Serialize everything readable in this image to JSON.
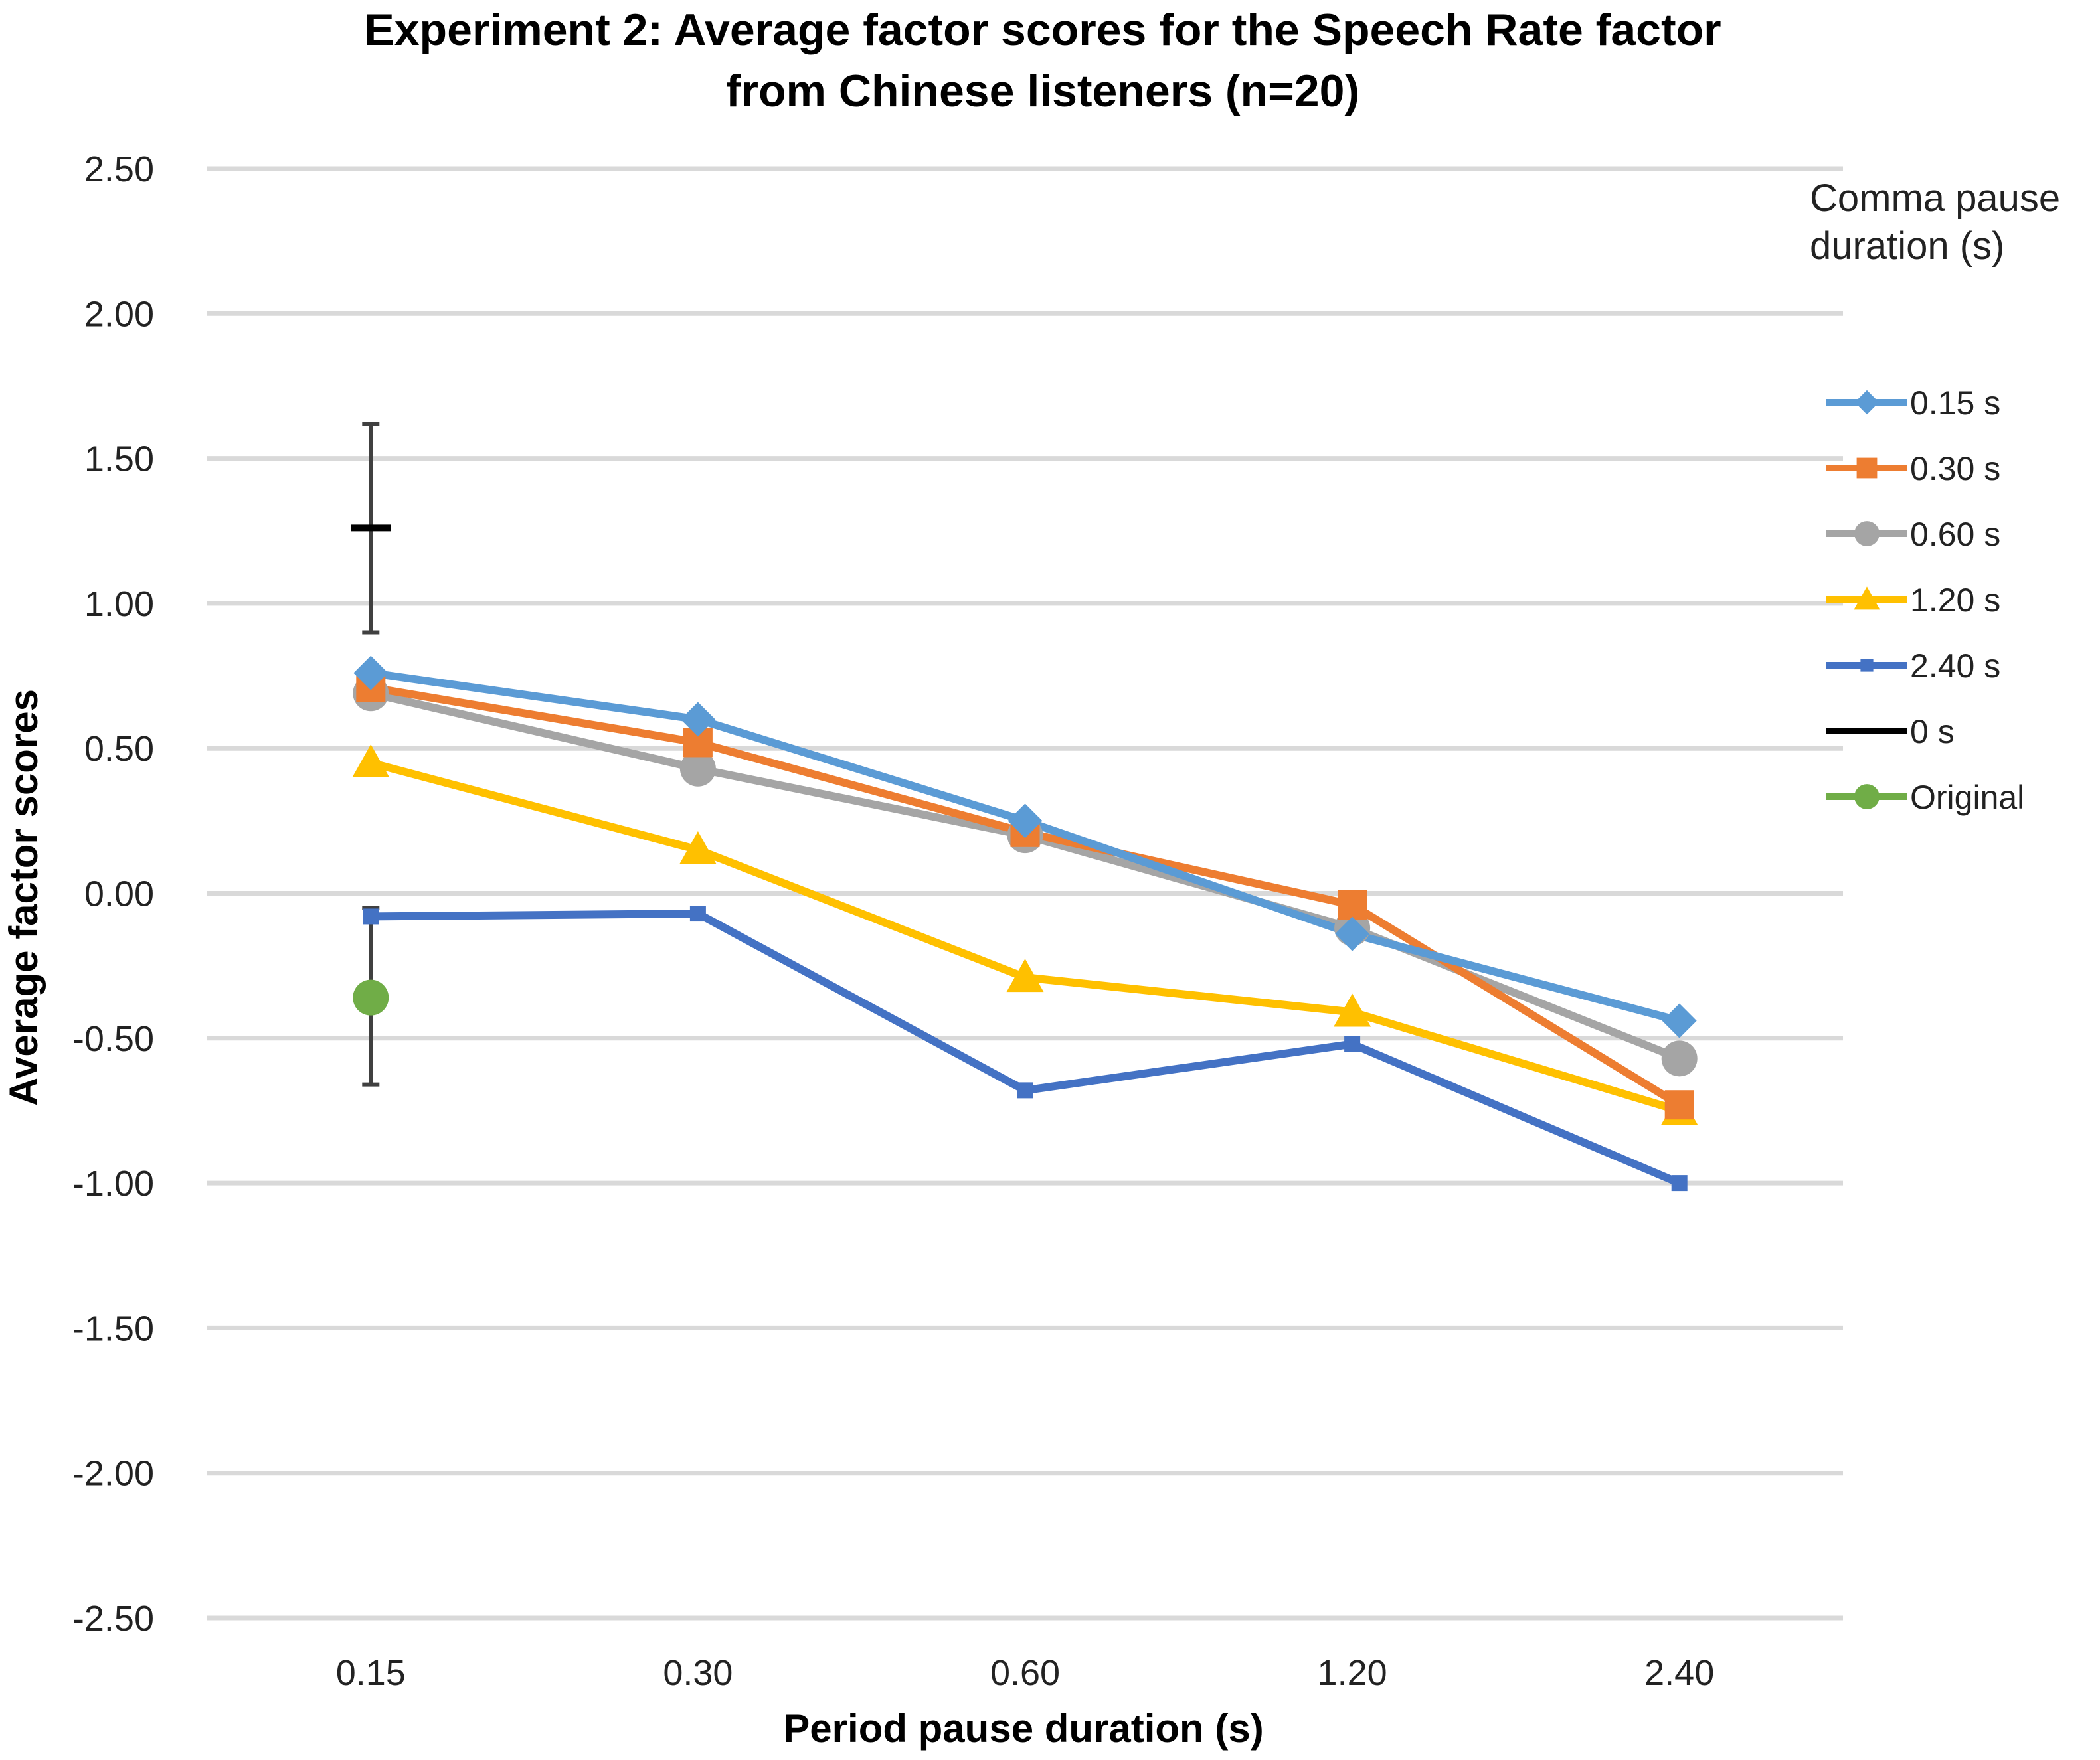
{
  "chart_data": {
    "type": "line",
    "title_lines": [
      "Experiment 2: Average factor scores for the Speech Rate factor",
      "from  Chinese listeners (n=20)"
    ],
    "xlabel": "Period pause duration (s)",
    "ylabel": "Average  factor scores",
    "categories": [
      "0.15",
      "0.30",
      "0.60",
      "1.20",
      "2.40"
    ],
    "ylim": [
      -2.5,
      2.5
    ],
    "yticks": [
      2.5,
      2.0,
      1.5,
      1.0,
      0.5,
      0.0,
      -0.5,
      -1.0,
      -1.5,
      -2.0,
      -2.5
    ],
    "ytick_labels": [
      "2.50",
      "2.00",
      "1.50",
      "1.00",
      "0.50",
      "0.00",
      "-0.50",
      "-1.00",
      "-1.50",
      "-2.00",
      "-2.50"
    ],
    "grid": true,
    "legend_title_lines": [
      "Comma pause",
      "duration (s)"
    ],
    "legend_position": "right",
    "series": [
      {
        "name": "0.15 s",
        "color": "#5B9BD5",
        "marker": "diamond",
        "values": [
          0.76,
          0.6,
          0.25,
          -0.14,
          -0.44
        ]
      },
      {
        "name": "0.30 s",
        "color": "#ED7D31",
        "marker": "square",
        "values": [
          0.71,
          0.52,
          0.21,
          -0.04,
          -0.73
        ]
      },
      {
        "name": "0.60 s",
        "color": "#A5A5A5",
        "marker": "circle",
        "values": [
          0.69,
          0.43,
          0.2,
          -0.12,
          -0.57
        ]
      },
      {
        "name": "1.20 s",
        "color": "#FFC000",
        "marker": "triangle",
        "values": [
          0.45,
          0.15,
          -0.29,
          -0.41,
          -0.75
        ]
      },
      {
        "name": "2.40 s",
        "color": "#4472C4",
        "marker": "small-square",
        "values": [
          -0.08,
          -0.07,
          -0.68,
          -0.52,
          -1.0
        ]
      }
    ],
    "reference_points": [
      {
        "name": "0 s",
        "color": "#000000",
        "marker": "dash",
        "category": "0.15",
        "value": 1.26,
        "error_low": 0.9,
        "error_high": 1.62
      },
      {
        "name": "Original",
        "color": "#70AD47",
        "marker": "circle",
        "category": "0.15",
        "value": -0.36,
        "error_low": -0.66,
        "error_high": -0.05
      }
    ]
  }
}
